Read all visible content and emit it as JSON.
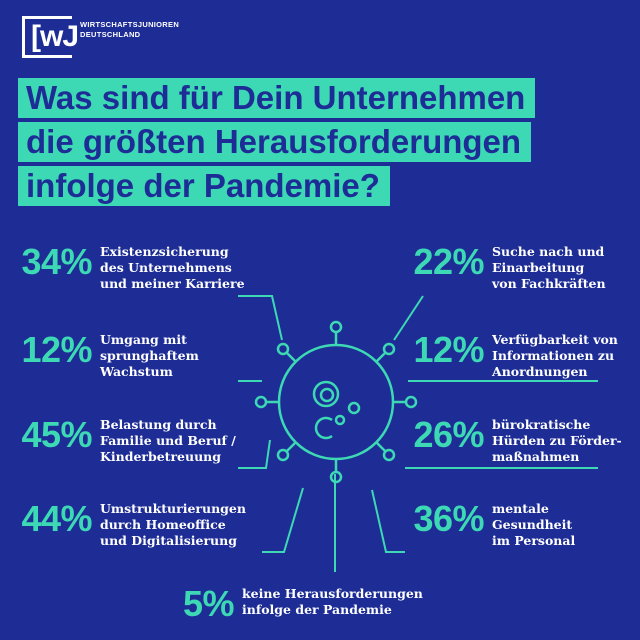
{
  "logo": {
    "mark": "[wJ",
    "line1": "WIRTSCHAFTSJUNIOREN",
    "line2": "DEUTSCHLAND"
  },
  "title": [
    "Was sind für Dein Unternehmen",
    "die größten Herausforderungen",
    "infolge der Pandemie?"
  ],
  "stats": [
    {
      "percent": "34%",
      "label": "Existenzsicherung\ndes Unternehmens\nund meiner Karriere"
    },
    {
      "percent": "12%",
      "label": " Umgang mit\nsprunghaftem\nWachstum"
    },
    {
      "percent": "45%",
      "label": "Belastung durch\nFamilie und Beruf /\nKinderbetreuung"
    },
    {
      "percent": "44%",
      "label": "Umstrukturierungen\ndurch Homeoffice\nund Digitalisierung"
    },
    {
      "percent": "22%",
      "label": "Suche nach und\nEinarbeitung\nvon Fachkräften"
    },
    {
      "percent": "12%",
      "label": "Verfügbarkeit von\nInformationen zu\nAnordnungen"
    },
    {
      "percent": "26%",
      "label": "bürokratische\nHürden zu Förder-\nmaßnahmen"
    },
    {
      "percent": "36%",
      "label": "mentale\nGesundheit\nim Personal"
    },
    {
      "percent": "5%",
      "label": "keine Herausforderungen\ninfolge der Pandemie"
    }
  ],
  "colors": {
    "background": "#1e2d96",
    "accent": "#3cd9b4",
    "text": "#ffffff"
  },
  "icons": {
    "center": "coronavirus-icon"
  }
}
